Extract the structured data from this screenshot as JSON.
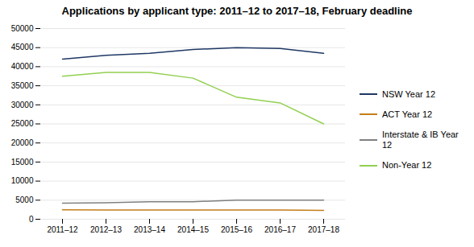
{
  "chart_data": {
    "type": "line",
    "title": "Applications by applicant type: 2011–12 to 2017–18,  February deadline",
    "categories": [
      "2011–12",
      "2012–13",
      "2013–14",
      "2014–15",
      "2015–16",
      "2016–17",
      "2017–18"
    ],
    "series": [
      {
        "name": "NSW Year 12",
        "color": "#1f3864",
        "values": [
          42000,
          43000,
          43500,
          44500,
          45000,
          44800,
          43500
        ]
      },
      {
        "name": "ACT Year 12",
        "color": "#c47d1a",
        "values": [
          2500,
          2400,
          2400,
          2400,
          2400,
          2400,
          2300
        ]
      },
      {
        "name": "Interstate & IB Year\n12",
        "color": "#808080",
        "values": [
          4200,
          4300,
          4600,
          4600,
          5000,
          5000,
          5000
        ]
      },
      {
        "name": "Non-Year 12",
        "color": "#92d050",
        "values": [
          37500,
          38500,
          38500,
          37000,
          32000,
          30500,
          25000
        ]
      }
    ],
    "ylim": [
      0,
      50000
    ],
    "yticks": [
      0,
      5000,
      10000,
      15000,
      20000,
      25000,
      30000,
      35000,
      40000,
      45000,
      50000
    ],
    "grid": true,
    "legend": "right"
  }
}
